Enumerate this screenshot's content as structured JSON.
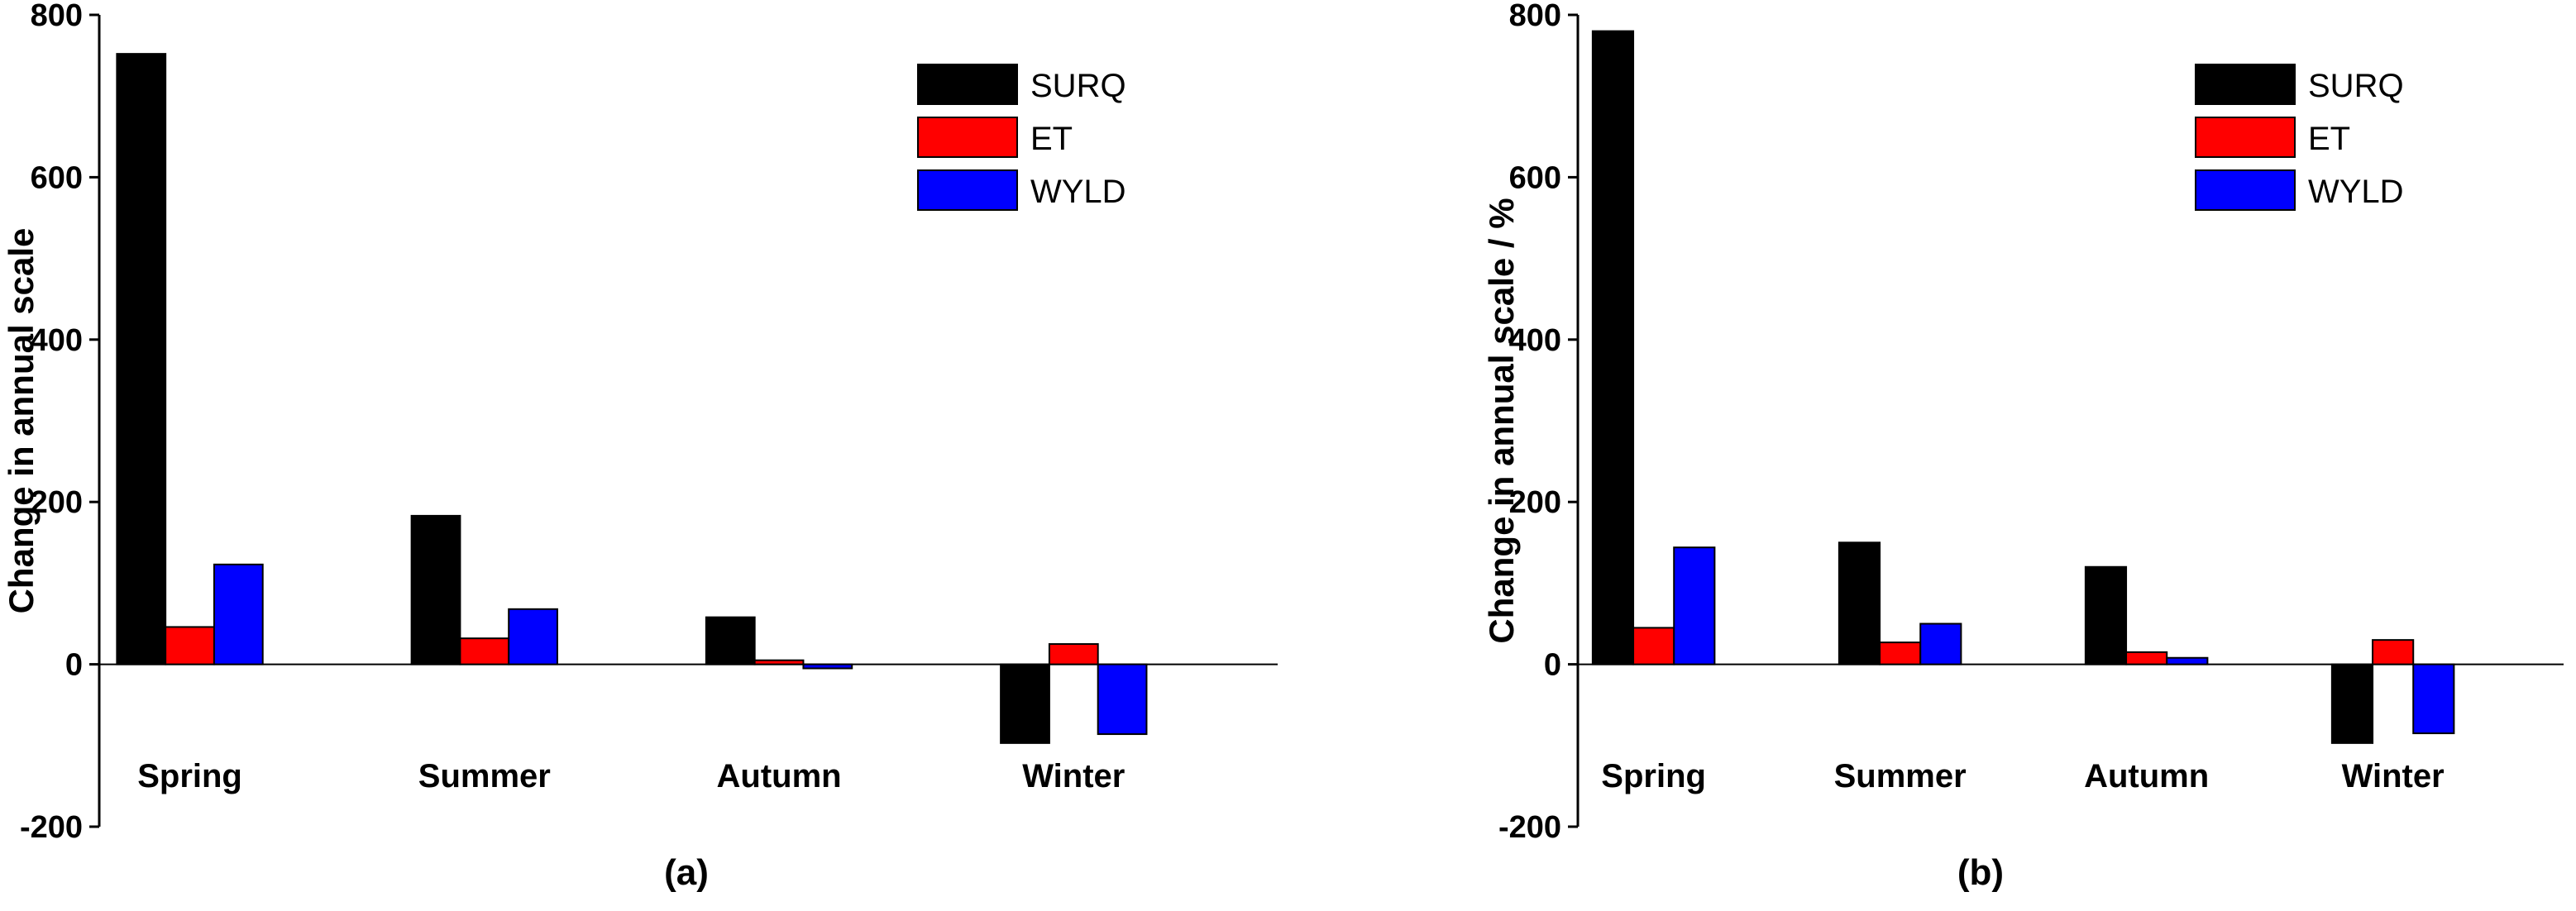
{
  "chart_data": [
    {
      "type": "bar",
      "panel_label": "(a)",
      "ylabel": "Change in annual scale",
      "xlabel": "",
      "categories": [
        "Spring",
        "Summer",
        "Autumn",
        "Winter"
      ],
      "ylim": [
        -200,
        800
      ],
      "yticks": [
        -200,
        0,
        200,
        400,
        600,
        800
      ],
      "legend_position": "top-right",
      "series": [
        {
          "name": "SURQ",
          "color": "#000000",
          "values": [
            752,
            183,
            58,
            -97
          ]
        },
        {
          "name": "ET",
          "color": "#ff0000",
          "values": [
            46,
            32,
            5,
            25
          ]
        },
        {
          "name": "WYLD",
          "color": "#0000ff",
          "values": [
            123,
            68,
            -5,
            -86
          ]
        }
      ]
    },
    {
      "type": "bar",
      "panel_label": "(b)",
      "ylabel": "Change in annual scale / %",
      "xlabel": "",
      "categories": [
        "Spring",
        "Summer",
        "Autumn",
        "Winter"
      ],
      "ylim": [
        -200,
        800
      ],
      "yticks": [
        -200,
        0,
        200,
        400,
        600,
        800
      ],
      "legend_position": "top-right",
      "series": [
        {
          "name": "SURQ",
          "color": "#000000",
          "values": [
            780,
            150,
            120,
            -97
          ]
        },
        {
          "name": "ET",
          "color": "#ff0000",
          "values": [
            45,
            27,
            15,
            30
          ]
        },
        {
          "name": "WYLD",
          "color": "#0000ff",
          "values": [
            144,
            50,
            8,
            -85
          ]
        }
      ]
    }
  ]
}
